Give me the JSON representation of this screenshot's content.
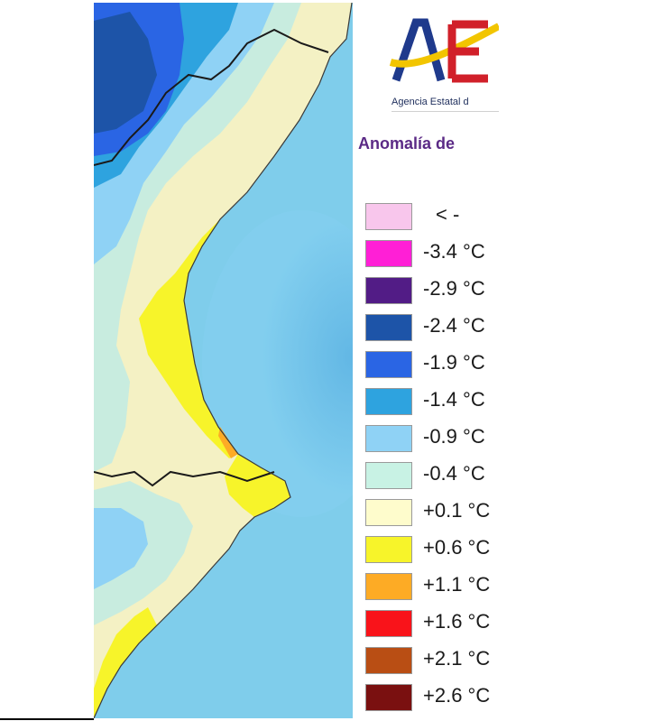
{
  "header": {
    "logo_text": "AEMET",
    "agency": "Agencia Estatal de Meteorología",
    "agency_visible": "Agencia Estatal d",
    "title": "Anomalía de"
  },
  "legend": [
    {
      "label": "< -",
      "color": "#f8c6ec"
    },
    {
      "label": "-3.4 °C",
      "color": "#ff1fd6"
    },
    {
      "label": "-2.9 °C",
      "color": "#521c86"
    },
    {
      "label": "-2.4 °C",
      "color": "#1d54a8"
    },
    {
      "label": "-1.9 °C",
      "color": "#2a65e4"
    },
    {
      "label": "-1.4 °C",
      "color": "#2ea3df"
    },
    {
      "label": "-0.9 °C",
      "color": "#8fd2f5"
    },
    {
      "label": "-0.4 °C",
      "color": "#c8f2e4"
    },
    {
      "label": "+0.1 °C",
      "color": "#fefccc"
    },
    {
      "label": "+0.6 °C",
      "color": "#f7f42a"
    },
    {
      "label": "+1.1 °C",
      "color": "#fdab25"
    },
    {
      "label": "+1.6 °C",
      "color": "#f9131a"
    },
    {
      "label": "+2.1 °C",
      "color": "#b94e14"
    },
    {
      "label": "+2.6 °C",
      "color": "#7a1010"
    }
  ],
  "colors": {
    "sea": "#7fcdeb",
    "sea_deep": "#5fb8e6",
    "title_purple": "#5b2a86",
    "logo_blue": "#1f3a8c",
    "logo_yellow": "#f2c500",
    "logo_red": "#d1202a"
  }
}
